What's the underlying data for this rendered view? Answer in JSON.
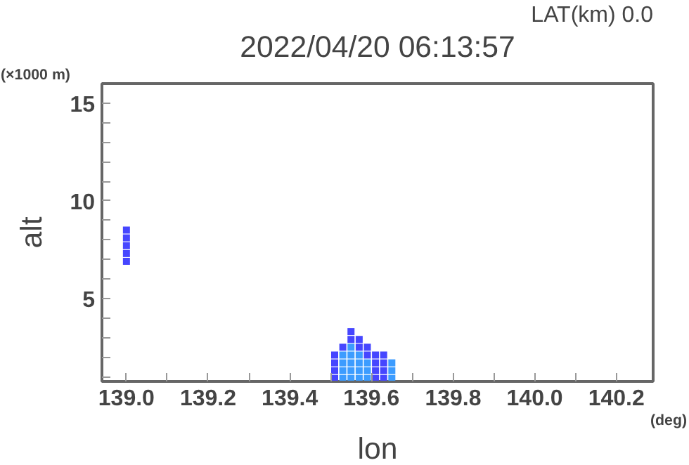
{
  "chart_data": {
    "type": "scatter",
    "title": "2022/04/20 06:13:57",
    "xlabel": "lon",
    "ylabel": "alt",
    "annotations": [
      "LAT(km) 0.0",
      "(×1000 m)",
      "(deg)"
    ],
    "marker": "square",
    "grid": false,
    "xlim": [
      138.94,
      140.29
    ],
    "ylim": [
      0.75,
      16
    ],
    "xticks": [
      {
        "value": 139.0,
        "label": "139.0"
      },
      {
        "value": 139.1,
        "label": null
      },
      {
        "value": 139.2,
        "label": "139.2"
      },
      {
        "value": 139.3,
        "label": null
      },
      {
        "value": 139.4,
        "label": "139.4"
      },
      {
        "value": 139.5,
        "label": null
      },
      {
        "value": 139.6,
        "label": "139.6"
      },
      {
        "value": 139.7,
        "label": null
      },
      {
        "value": 139.8,
        "label": "139.8"
      },
      {
        "value": 139.9,
        "label": null
      },
      {
        "value": 140.0,
        "label": "140.0"
      },
      {
        "value": 140.1,
        "label": null
      },
      {
        "value": 140.2,
        "label": "140.2"
      }
    ],
    "yticks": [
      {
        "value": 1,
        "label": null
      },
      {
        "value": 2,
        "label": null
      },
      {
        "value": 3,
        "label": null
      },
      {
        "value": 4,
        "label": null
      },
      5,
      {
        "value": 6,
        "label": null
      },
      {
        "value": 7,
        "label": null
      },
      {
        "value": 8,
        "label": null
      },
      {
        "value": 9,
        "label": null
      },
      10,
      {
        "value": 11,
        "label": null
      },
      {
        "value": 12,
        "label": null
      },
      {
        "value": 13,
        "label": null
      },
      {
        "value": 14,
        "label": null
      },
      15
    ],
    "series": [
      {
        "color": "#4646ff",
        "x": [
          139.0,
          139.0,
          139.0,
          139.0,
          139.0,
          139.51,
          139.51,
          139.51,
          139.51,
          139.53,
          139.55,
          139.55,
          139.57,
          139.57,
          139.59,
          139.59,
          139.61,
          139.61,
          139.61,
          139.61,
          139.63,
          139.63,
          139.63,
          139.63
        ],
        "values": [
          6.9,
          7.3,
          7.7,
          8.1,
          8.5,
          0.9,
          1.3,
          1.7,
          2.1,
          2.5,
          2.9,
          3.3,
          2.5,
          2.9,
          2.1,
          2.5,
          0.9,
          1.3,
          1.7,
          2.1,
          0.9,
          1.3,
          1.7,
          2.1
        ]
      },
      {
        "color": "#3c9cff",
        "x": [
          139.53,
          139.53,
          139.53,
          139.53,
          139.55,
          139.55,
          139.55,
          139.55,
          139.55,
          139.57,
          139.57,
          139.57,
          139.57,
          139.59,
          139.59,
          139.59,
          139.65,
          139.65,
          139.65
        ],
        "values": [
          0.9,
          1.3,
          1.7,
          2.1,
          0.9,
          1.3,
          1.7,
          2.1,
          2.5,
          0.9,
          1.3,
          1.7,
          2.1,
          0.9,
          1.3,
          1.7,
          0.9,
          1.3,
          1.7
        ]
      }
    ]
  }
}
